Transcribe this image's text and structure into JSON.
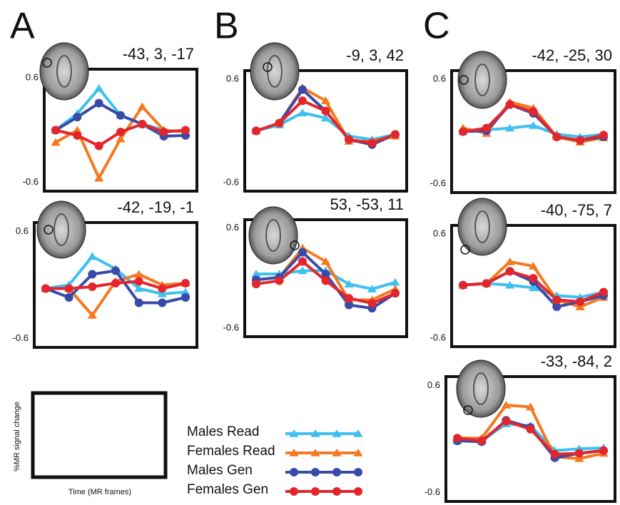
{
  "panel_labels": [
    "A",
    "B",
    "C"
  ],
  "example_axes": {
    "xlabel": "Time (MR frames)",
    "ylabel": "%MR signal change"
  },
  "chart_data": [
    {
      "type": "line",
      "title": "-43, 3, -17",
      "ylim": [
        -0.7,
        0.7
      ],
      "yticks": [
        0.6,
        -0.6
      ],
      "grid": false,
      "series": [
        {
          "name": "Males Read",
          "color": "#3ec0f0",
          "marker": "triangle",
          "values": [
            0,
            0.19,
            0.48,
            0.17,
            0.07,
            0,
            -0.02
          ]
        },
        {
          "name": "Females Read",
          "color": "#f47920",
          "marker": "triangle",
          "values": [
            -0.14,
            0,
            -0.55,
            -0.1,
            0.27,
            0,
            -0.02
          ]
        },
        {
          "name": "Males Gen",
          "color": "#3a4aa8",
          "marker": "circle",
          "values": [
            0,
            0.15,
            0.31,
            0.17,
            0.07,
            -0.07,
            -0.06
          ]
        },
        {
          "name": "Females Gen",
          "color": "#e2262c",
          "marker": "circle",
          "values": [
            0,
            -0.06,
            -0.18,
            -0.02,
            0.07,
            -0.02,
            0
          ]
        }
      ]
    },
    {
      "type": "line",
      "title": "-42, -19, -1",
      "ylim": [
        -0.7,
        0.7
      ],
      "yticks": [
        0.6,
        -0.6
      ],
      "grid": false,
      "series": [
        {
          "name": "Males Read",
          "color": "#3ec0f0",
          "marker": "triangle",
          "values": [
            -0.04,
            0,
            0.32,
            0.18,
            -0.04,
            -0.1,
            -0.08
          ]
        },
        {
          "name": "Females Read",
          "color": "#f47920",
          "marker": "triangle",
          "values": [
            -0.04,
            -0.04,
            -0.34,
            0.04,
            0.12,
            0,
            0.02
          ]
        },
        {
          "name": "Males Gen",
          "color": "#3a4aa8",
          "marker": "circle",
          "values": [
            -0.04,
            -0.14,
            0.12,
            0.16,
            -0.2,
            -0.2,
            -0.14
          ]
        },
        {
          "name": "Females Gen",
          "color": "#e2262c",
          "marker": "circle",
          "values": [
            -0.04,
            -0.04,
            -0.02,
            0.02,
            0.04,
            -0.04,
            0.02
          ]
        }
      ]
    },
    {
      "type": "line",
      "title": "-9, 3, 42",
      "ylim": [
        -0.7,
        0.7
      ],
      "yticks": [
        0.6,
        -0.6
      ],
      "grid": false,
      "series": [
        {
          "name": "Males Read",
          "color": "#3ec0f0",
          "marker": "triangle",
          "values": [
            0,
            0.07,
            0.21,
            0.15,
            -0.06,
            -0.1,
            -0.04
          ]
        },
        {
          "name": "Females Read",
          "color": "#f47920",
          "marker": "triangle",
          "values": [
            0,
            0.09,
            0.5,
            0.35,
            -0.12,
            -0.12,
            -0.06
          ]
        },
        {
          "name": "Males Gen",
          "color": "#3a4aa8",
          "marker": "circle",
          "values": [
            0,
            0.09,
            0.48,
            0.23,
            -0.1,
            -0.16,
            -0.04
          ]
        },
        {
          "name": "Females Gen",
          "color": "#e2262c",
          "marker": "circle",
          "values": [
            0,
            0.09,
            0.35,
            0.23,
            -0.1,
            -0.14,
            -0.04
          ]
        }
      ]
    },
    {
      "type": "line",
      "title": "53, -53, 11",
      "ylim": [
        -0.7,
        0.7
      ],
      "yticks": [
        0.6,
        -0.6
      ],
      "grid": false,
      "series": [
        {
          "name": "Males Read",
          "color": "#3ec0f0",
          "marker": "triangle",
          "values": [
            0.05,
            0.05,
            0.09,
            0.09,
            -0.07,
            -0.13,
            -0.05
          ]
        },
        {
          "name": "Females Read",
          "color": "#f47920",
          "marker": "triangle",
          "values": [
            -0.02,
            0.01,
            0.36,
            0.2,
            -0.26,
            -0.26,
            -0.13
          ]
        },
        {
          "name": "Males Gen",
          "color": "#3a4aa8",
          "marker": "circle",
          "values": [
            -0.02,
            0.01,
            0.31,
            0.05,
            -0.32,
            -0.36,
            -0.18
          ]
        },
        {
          "name": "Females Gen",
          "color": "#e2262c",
          "marker": "circle",
          "values": [
            -0.07,
            -0.03,
            0.2,
            -0.03,
            -0.24,
            -0.3,
            -0.18
          ]
        }
      ]
    },
    {
      "type": "line",
      "title": "-42, -25, 30",
      "ylim": [
        -0.7,
        0.7
      ],
      "yticks": [
        0.6,
        -0.6
      ],
      "grid": false,
      "series": [
        {
          "name": "Males Read",
          "color": "#3ec0f0",
          "marker": "triangle",
          "values": [
            0,
            0.02,
            0.04,
            0.07,
            -0.03,
            -0.06,
            -0.03
          ]
        },
        {
          "name": "Females Read",
          "color": "#f47920",
          "marker": "triangle",
          "values": [
            0.04,
            -0.02,
            0.34,
            0.27,
            -0.06,
            -0.12,
            -0.07
          ]
        },
        {
          "name": "Males Gen",
          "color": "#3a4aa8",
          "marker": "circle",
          "values": [
            0,
            0.01,
            0.31,
            0.21,
            -0.06,
            -0.1,
            -0.06
          ]
        },
        {
          "name": "Females Gen",
          "color": "#e2262c",
          "marker": "circle",
          "values": [
            0,
            0.04,
            0.31,
            0.23,
            -0.06,
            -0.1,
            -0.04
          ]
        }
      ]
    },
    {
      "type": "line",
      "title": "-40, -75, 7",
      "ylim": [
        -0.7,
        0.7
      ],
      "yticks": [
        0.6,
        -0.6
      ],
      "grid": false,
      "series": [
        {
          "name": "Males Read",
          "color": "#3ec0f0",
          "marker": "triangle",
          "values": [
            0.01,
            0.03,
            0.01,
            -0.02,
            -0.11,
            -0.13,
            -0.07
          ]
        },
        {
          "name": "Females Read",
          "color": "#f47920",
          "marker": "triangle",
          "values": [
            0.01,
            0.03,
            0.28,
            0.23,
            -0.16,
            -0.24,
            -0.13
          ]
        },
        {
          "name": "Males Gen",
          "color": "#3a4aa8",
          "marker": "circle",
          "values": [
            0.01,
            0.03,
            0.17,
            0.05,
            -0.24,
            -0.18,
            -0.11
          ]
        },
        {
          "name": "Females Gen",
          "color": "#e2262c",
          "marker": "circle",
          "values": [
            0.01,
            0.03,
            0.17,
            0.09,
            -0.16,
            -0.18,
            -0.07
          ]
        }
      ]
    },
    {
      "type": "line",
      "title": "-33, -84, 2",
      "ylim": [
        -0.7,
        0.7
      ],
      "yticks": [
        0.6,
        -0.6
      ],
      "grid": false,
      "series": [
        {
          "name": "Males Read",
          "color": "#3ec0f0",
          "marker": "triangle",
          "values": [
            -0.02,
            -0.02,
            0.17,
            0.15,
            -0.13,
            -0.11,
            -0.1
          ]
        },
        {
          "name": "Females Read",
          "color": "#f47920",
          "marker": "triangle",
          "values": [
            0.01,
            0.01,
            0.38,
            0.36,
            -0.2,
            -0.22,
            -0.16
          ]
        },
        {
          "name": "Males Gen",
          "color": "#3a4aa8",
          "marker": "circle",
          "values": [
            -0.02,
            -0.03,
            0.21,
            0.13,
            -0.21,
            -0.16,
            -0.13
          ]
        },
        {
          "name": "Females Gen",
          "color": "#e2262c",
          "marker": "circle",
          "values": [
            0.01,
            -0.02,
            0.2,
            0.11,
            -0.17,
            -0.16,
            -0.13
          ]
        }
      ]
    }
  ]
}
